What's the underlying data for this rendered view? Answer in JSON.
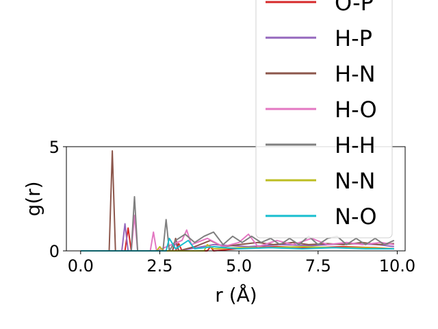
{
  "chart_data": {
    "type": "line",
    "title": "",
    "xlabel": "r (Å)",
    "ylabel": "g(r)",
    "xlim": [
      -0.45,
      10.25
    ],
    "ylim": [
      0,
      5
    ],
    "xticks": [
      0.0,
      2.5,
      5.0,
      7.5,
      10.0
    ],
    "xtick_labels": [
      "0.0",
      "2.5",
      "5.0",
      "7.5",
      "10.0"
    ],
    "yticks": [
      0,
      5
    ],
    "ytick_labels": [
      "0",
      "5"
    ],
    "grid": false,
    "legend_position": "top-right",
    "series": [
      {
        "name": "O-P",
        "color": "#d62728",
        "points": [
          [
            0,
            0
          ],
          [
            1.4,
            0
          ],
          [
            1.5,
            1.1
          ],
          [
            1.6,
            0
          ],
          [
            3.0,
            0
          ],
          [
            3.1,
            0.35
          ],
          [
            3.2,
            0
          ],
          [
            4.0,
            0
          ],
          [
            4.1,
            0.2
          ],
          [
            4.2,
            0
          ],
          [
            5.3,
            0.15
          ],
          [
            6.2,
            0.2
          ],
          [
            7.3,
            0.15
          ],
          [
            8.3,
            0.2
          ],
          [
            9.3,
            0.15
          ],
          [
            9.9,
            0.1
          ]
        ]
      },
      {
        "name": "H-P",
        "color": "#9467bd",
        "points": [
          [
            0,
            0
          ],
          [
            1.3,
            0
          ],
          [
            1.4,
            1.3
          ],
          [
            1.5,
            0
          ],
          [
            2.9,
            0
          ],
          [
            3.0,
            0.4
          ],
          [
            3.1,
            0
          ],
          [
            4.2,
            0.3
          ],
          [
            5.3,
            0.2
          ],
          [
            6.3,
            0.3
          ],
          [
            7.3,
            0.25
          ],
          [
            8.4,
            0.35
          ],
          [
            9.4,
            0.3
          ],
          [
            9.9,
            0.2
          ]
        ]
      },
      {
        "name": "H-N",
        "color": "#8c564b",
        "points": [
          [
            0,
            0
          ],
          [
            0.9,
            0
          ],
          [
            1.0,
            4.8
          ],
          [
            1.1,
            0
          ],
          [
            2.9,
            0
          ],
          [
            3.0,
            0.6
          ],
          [
            3.1,
            0
          ],
          [
            3.6,
            0.2
          ],
          [
            4.1,
            0.5
          ],
          [
            4.5,
            0.2
          ],
          [
            5.0,
            0.3
          ],
          [
            5.6,
            0.4
          ],
          [
            6.1,
            0.3
          ],
          [
            6.7,
            0.4
          ],
          [
            7.2,
            0.3
          ],
          [
            7.8,
            0.35
          ],
          [
            8.3,
            0.3
          ],
          [
            8.9,
            0.4
          ],
          [
            9.4,
            0.3
          ],
          [
            9.9,
            0.35
          ]
        ]
      },
      {
        "name": "H-O",
        "color": "#e377c2",
        "points": [
          [
            0,
            0
          ],
          [
            1.6,
            0
          ],
          [
            1.7,
            1.7
          ],
          [
            1.8,
            0
          ],
          [
            2.2,
            0
          ],
          [
            2.3,
            0.9
          ],
          [
            2.4,
            0
          ],
          [
            3.2,
            0.5
          ],
          [
            3.35,
            1.0
          ],
          [
            3.5,
            0.3
          ],
          [
            4.0,
            0.6
          ],
          [
            4.5,
            0.2
          ],
          [
            5.0,
            0.4
          ],
          [
            5.3,
            0.8
          ],
          [
            5.6,
            0.2
          ],
          [
            6.2,
            0.5
          ],
          [
            6.7,
            0.3
          ],
          [
            7.3,
            0.6
          ],
          [
            7.8,
            0.3
          ],
          [
            8.4,
            0.4
          ],
          [
            8.9,
            0.3
          ],
          [
            9.5,
            0.4
          ],
          [
            9.9,
            0.3
          ]
        ]
      },
      {
        "name": "H-H",
        "color": "#7f7f7f",
        "points": [
          [
            0,
            0
          ],
          [
            1.6,
            0
          ],
          [
            1.7,
            2.6
          ],
          [
            1.8,
            0
          ],
          [
            2.6,
            0
          ],
          [
            2.7,
            1.5
          ],
          [
            2.8,
            0
          ],
          [
            3.0,
            0.5
          ],
          [
            3.3,
            0.8
          ],
          [
            3.6,
            0.4
          ],
          [
            3.9,
            0.7
          ],
          [
            4.2,
            0.9
          ],
          [
            4.5,
            0.3
          ],
          [
            4.8,
            0.7
          ],
          [
            5.1,
            0.4
          ],
          [
            5.4,
            0.7
          ],
          [
            5.7,
            0.4
          ],
          [
            6.0,
            0.6
          ],
          [
            6.3,
            0.3
          ],
          [
            6.6,
            0.6
          ],
          [
            6.9,
            0.3
          ],
          [
            7.2,
            0.7
          ],
          [
            7.5,
            0.3
          ],
          [
            7.8,
            0.6
          ],
          [
            8.1,
            0.7
          ],
          [
            8.4,
            0.3
          ],
          [
            8.7,
            0.6
          ],
          [
            9.0,
            0.3
          ],
          [
            9.3,
            0.6
          ],
          [
            9.6,
            0.3
          ],
          [
            9.9,
            0.5
          ]
        ]
      },
      {
        "name": "N-N",
        "color": "#bcbd22",
        "points": [
          [
            0,
            0
          ],
          [
            2.4,
            0
          ],
          [
            2.5,
            0.2
          ],
          [
            2.6,
            0
          ],
          [
            3.9,
            0
          ],
          [
            4.0,
            0.3
          ],
          [
            4.2,
            0.1
          ],
          [
            5.0,
            0.15
          ],
          [
            6.0,
            0.15
          ],
          [
            7.0,
            0.2
          ],
          [
            8.0,
            0.15
          ],
          [
            9.0,
            0.15
          ],
          [
            9.9,
            0.1
          ]
        ]
      },
      {
        "name": "N-O",
        "color": "#17becf",
        "points": [
          [
            0,
            0
          ],
          [
            2.7,
            0
          ],
          [
            2.8,
            0.6
          ],
          [
            3.0,
            0.1
          ],
          [
            3.4,
            0.5
          ],
          [
            3.6,
            0.1
          ],
          [
            4.2,
            0.2
          ],
          [
            5.0,
            0.1
          ],
          [
            6.0,
            0.15
          ],
          [
            7.0,
            0.1
          ],
          [
            8.0,
            0.15
          ],
          [
            9.0,
            0.1
          ],
          [
            9.9,
            0.1
          ]
        ]
      }
    ]
  }
}
